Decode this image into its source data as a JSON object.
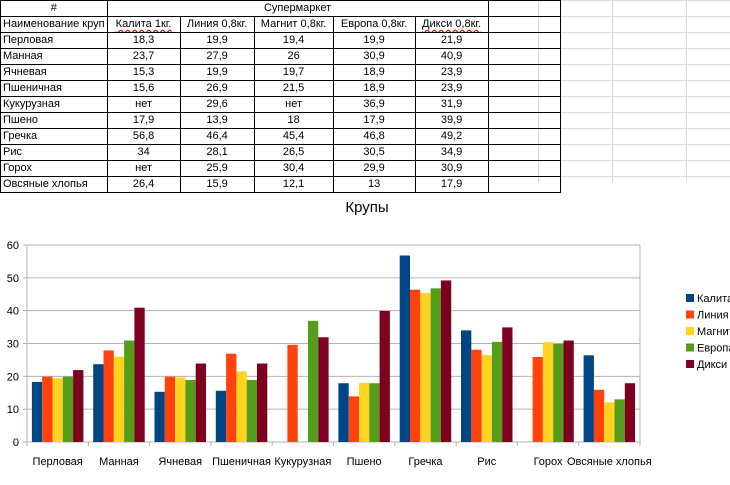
{
  "sheet": {
    "hash_header": "#",
    "group_header": "Супермаркет",
    "name_header": "Наименование круп",
    "shops": [
      "Калита 1кг.",
      "Линия 0,8кг.",
      "Магнит 0,8кг.",
      "Европа 0,8кг.",
      "Дикси 0,8кг."
    ],
    "rows": [
      {
        "name": "Перловая",
        "values": [
          "18,3",
          "19,9",
          "19,4",
          "19,9",
          "21,9"
        ]
      },
      {
        "name": "Манная",
        "values": [
          "23,7",
          "27,9",
          "26",
          "30,9",
          "40,9"
        ]
      },
      {
        "name": "Ячневая",
        "values": [
          "15,3",
          "19,9",
          "19,7",
          "18,9",
          "23,9"
        ]
      },
      {
        "name": "Пшеничная",
        "values": [
          "15,6",
          "26,9",
          "21,5",
          "18,9",
          "23,9"
        ]
      },
      {
        "name": "Кукурузная",
        "values": [
          "нет",
          "29,6",
          "нет",
          "36,9",
          "31,9"
        ]
      },
      {
        "name": "Пшено",
        "values": [
          "17,9",
          "13,9",
          "18",
          "17,9",
          "39,9"
        ]
      },
      {
        "name": "Гречка",
        "values": [
          "56,8",
          "46,4",
          "45,4",
          "46,8",
          "49,2"
        ]
      },
      {
        "name": "Рис",
        "values": [
          "34",
          "28,1",
          "26,5",
          "30,5",
          "34,9"
        ]
      },
      {
        "name": "Горох",
        "values": [
          "нет",
          "25,9",
          "30,4",
          "29,9",
          "30,9"
        ]
      },
      {
        "name": "Овсяные хлопья",
        "values": [
          "26,4",
          "15,9",
          "12,1",
          "13",
          "17,9"
        ]
      }
    ]
  },
  "chart_data": {
    "type": "bar",
    "title": "Крупы",
    "categories": [
      "Перловая",
      "Манная",
      "Ячневая",
      "Пшеничная",
      "Кукурузная",
      "Пшено",
      "Гречка",
      "Рис",
      "Горох",
      "Овсяные хлопья"
    ],
    "series": [
      {
        "name": "Калита",
        "color": "#004586",
        "values": [
          18.3,
          23.7,
          15.3,
          15.6,
          null,
          17.9,
          56.8,
          34,
          null,
          26.4
        ]
      },
      {
        "name": "Линия",
        "color": "#ff420e",
        "values": [
          19.9,
          27.9,
          19.9,
          26.9,
          29.6,
          13.9,
          46.4,
          28.1,
          25.9,
          15.9
        ]
      },
      {
        "name": "Магнит",
        "color": "#ffd320",
        "values": [
          19.4,
          26,
          19.7,
          21.5,
          null,
          18,
          45.4,
          26.5,
          30.4,
          12.1
        ]
      },
      {
        "name": "Европа",
        "color": "#579d1c",
        "values": [
          19.9,
          30.9,
          18.9,
          18.9,
          36.9,
          17.9,
          46.8,
          30.5,
          29.9,
          13
        ]
      },
      {
        "name": "Дикси",
        "color": "#7e0021",
        "values": [
          21.9,
          40.9,
          23.9,
          23.9,
          31.9,
          39.9,
          49.2,
          34.9,
          30.9,
          17.9
        ]
      }
    ],
    "ylim": [
      0,
      60
    ],
    "yticks": [
      0,
      10,
      20,
      30,
      40,
      50,
      60
    ],
    "grid": true,
    "legend": "right"
  }
}
